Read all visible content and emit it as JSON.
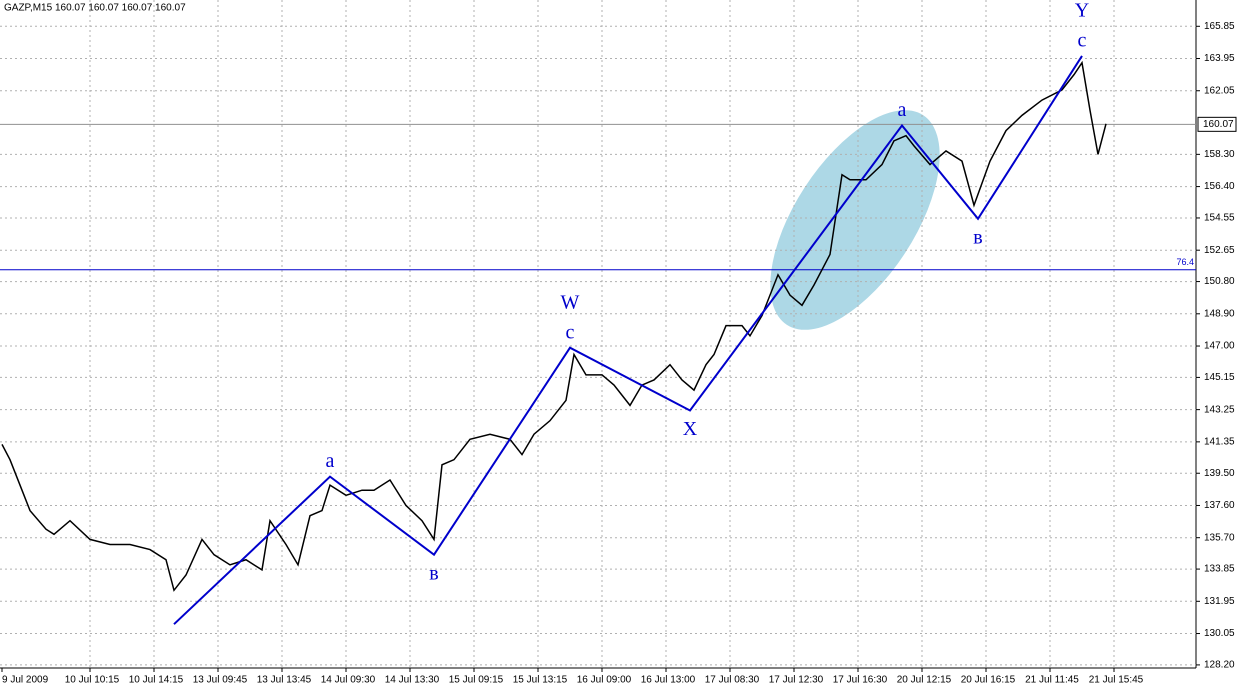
{
  "chart_data": {
    "type": "line",
    "title": "GAZP,M15  160.07 160.07 160.07 160.07",
    "xlim": [
      0,
      298
    ],
    "xticks": [
      {
        "value": 0,
        "label": "9 Jul 2009"
      },
      {
        "value": 22,
        "label": "10 Jul 10:15"
      },
      {
        "value": 38,
        "label": "10 Jul 14:15"
      },
      {
        "value": 54,
        "label": "13 Jul 09:45"
      },
      {
        "value": 70,
        "label": "13 Jul 13:45"
      },
      {
        "value": 86,
        "label": "14 Jul 09:30"
      },
      {
        "value": 102,
        "label": "14 Jul 13:30"
      },
      {
        "value": 118,
        "label": "15 Jul 09:15"
      },
      {
        "value": 134,
        "label": "15 Jul 13:15"
      },
      {
        "value": 150,
        "label": "16 Jul 09:00"
      },
      {
        "value": 166,
        "label": "16 Jul 13:00"
      },
      {
        "value": 182,
        "label": "17 Jul 08:30"
      },
      {
        "value": 198,
        "label": "17 Jul 12:30"
      },
      {
        "value": 214,
        "label": "17 Jul 16:30"
      },
      {
        "value": 230,
        "label": "20 Jul 12:15"
      },
      {
        "value": 246,
        "label": "20 Jul 16:15"
      },
      {
        "value": 262,
        "label": "21 Jul 11:45"
      },
      {
        "value": 278,
        "label": "21 Jul 15:45"
      }
    ],
    "ylim": [
      127.9,
      167.4
    ],
    "yticks": [
      165.85,
      163.95,
      162.05,
      {
        "value": 158.3,
        "label": "158.30"
      },
      {
        "value": 156.4,
        "label": "156.40"
      },
      154.55,
      152.65,
      {
        "value": 150.8,
        "label": "150.80"
      },
      {
        "value": 148.9,
        "label": "148.90"
      },
      {
        "value": 147,
        "label": "147.00"
      },
      145.15,
      143.25,
      141.35,
      {
        "value": 139.5,
        "label": "139.50"
      },
      {
        "value": 137.6,
        "label": "137.60"
      },
      {
        "value": 135.7,
        "label": "135.70"
      },
      133.85,
      131.95,
      130.05,
      {
        "value": 128.2,
        "label": "128.20"
      }
    ],
    "grid": true,
    "x": [
      0,
      2,
      5,
      7,
      11,
      13,
      17,
      22,
      27,
      32,
      37,
      41,
      43,
      46,
      50,
      53,
      57,
      61,
      65,
      67,
      71,
      74,
      77,
      80,
      82,
      86,
      90,
      93,
      97,
      101,
      105,
      108,
      110,
      113,
      117,
      122,
      127,
      130,
      133,
      137,
      141,
      143,
      146,
      150,
      153,
      157,
      160,
      163,
      167,
      170,
      173,
      176,
      178,
      181,
      185,
      187,
      190,
      194,
      197,
      200,
      203,
      207,
      210,
      212,
      216,
      220,
      223,
      226,
      228,
      232,
      236,
      240,
      243,
      247,
      251,
      255,
      260,
      265,
      268,
      270,
      272,
      274,
      276
    ],
    "series": [
      {
        "color": "#000000",
        "values": [
          141.2,
          140.3,
          138.5,
          137.3,
          136.2,
          135.9,
          136.7,
          135.6,
          135.3,
          135.3,
          135.0,
          134.4,
          132.6,
          133.5,
          135.6,
          134.7,
          134.1,
          134.4,
          133.8,
          136.7,
          135.3,
          134.1,
          137.0,
          137.3,
          138.8,
          138.2,
          138.5,
          138.5,
          139.1,
          137.6,
          136.7,
          135.6,
          140.0,
          140.3,
          141.5,
          141.8,
          141.5,
          140.6,
          141.8,
          142.6,
          143.8,
          146.5,
          145.3,
          145.3,
          144.7,
          143.5,
          144.7,
          145.0,
          145.9,
          145.0,
          144.4,
          145.9,
          146.5,
          148.2,
          148.2,
          147.6,
          148.8,
          151.2,
          150.0,
          149.4,
          150.6,
          152.4,
          157.1,
          156.8,
          156.8,
          157.7,
          159.1,
          159.4,
          158.8,
          157.7,
          158.5,
          157.9,
          155.3,
          157.9,
          159.7,
          160.6,
          161.5,
          162.1,
          163.0,
          163.7,
          160.9,
          158.3,
          160.1
        ]
      }
    ],
    "waves": {
      "color": "#0000cc",
      "x": [
        43,
        82,
        108,
        142,
        172,
        225,
        244,
        270
      ],
      "values": [
        130.6,
        139.3,
        134.7,
        146.9,
        143.2,
        160.0,
        154.5,
        164.1
      ],
      "labels": [
        [],
        [
          "a"
        ],
        [
          "в"
        ],
        [
          "W",
          "c"
        ],
        [
          "X"
        ],
        [
          "a"
        ],
        [
          "в"
        ],
        [
          "Y",
          "c"
        ]
      ]
    },
    "fib_level": {
      "value": 151.5,
      "label": "76.4"
    },
    "last_price": 160.07
  }
}
